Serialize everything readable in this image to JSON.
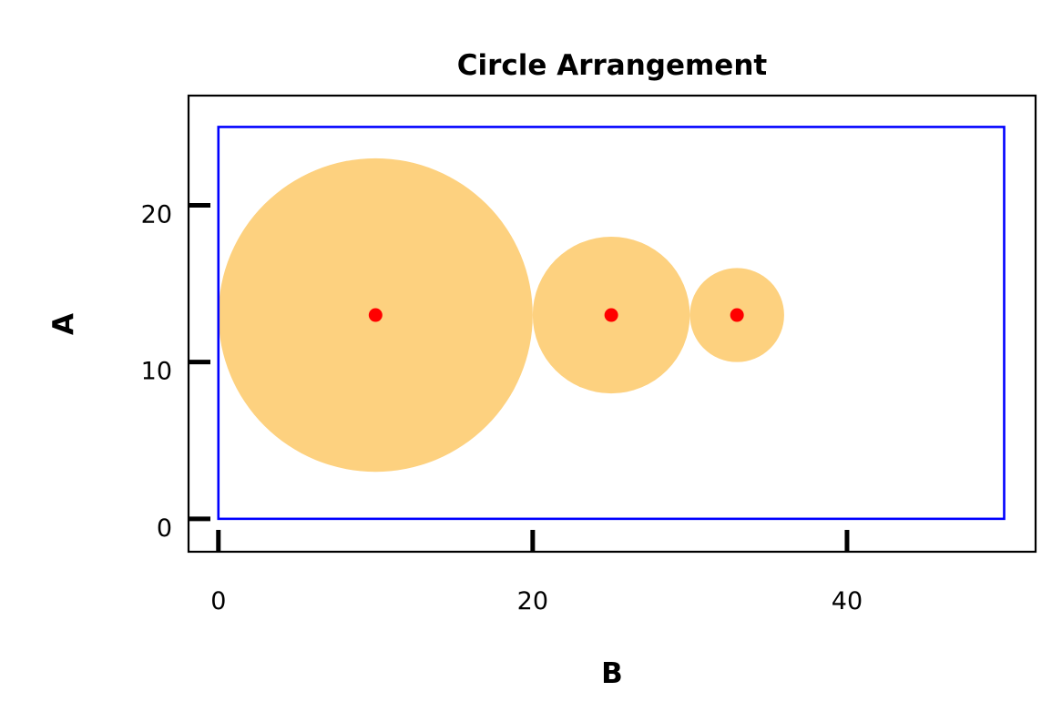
{
  "chart_data": {
    "type": "scatter",
    "title": "Circle Arrangement",
    "xlabel": "B",
    "ylabel": "A",
    "xlim": [
      -1.9,
      52
    ],
    "ylim": [
      -2.1,
      27
    ],
    "xticks": [
      0,
      20,
      40
    ],
    "yticks": [
      0,
      10,
      20
    ],
    "grid": false,
    "legend": "none",
    "rectangle": {
      "x0": 0,
      "y0": 0,
      "x1": 50,
      "y1": 25,
      "color": "#0000ff"
    },
    "circles": [
      {
        "cx": 10,
        "cy": 13,
        "r": 10,
        "fill": "#fdd17f"
      },
      {
        "cx": 25,
        "cy": 13,
        "r": 5,
        "fill": "#fdd17f"
      },
      {
        "cx": 33,
        "cy": 13,
        "r": 3,
        "fill": "#fdd17f"
      }
    ],
    "centers": {
      "color": "#ff0000",
      "points": [
        {
          "x": 10,
          "y": 13
        },
        {
          "x": 25,
          "y": 13
        },
        {
          "x": 33,
          "y": 13
        }
      ]
    }
  }
}
